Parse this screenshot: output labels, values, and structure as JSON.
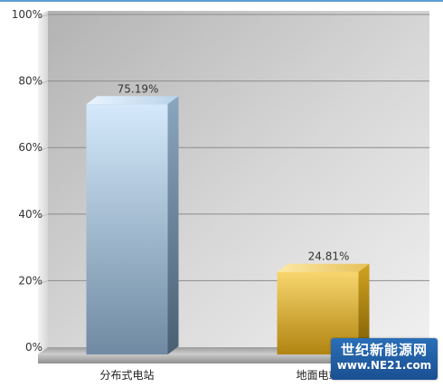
{
  "chart_data": {
    "type": "bar",
    "categories": [
      "分布式电站",
      "地面电站"
    ],
    "values": [
      75.19,
      24.81
    ],
    "data_labels": [
      "75.19%",
      "24.81%"
    ],
    "series_colors": [
      "#8fb1d2",
      "#e0b43a"
    ],
    "ylim": [
      0,
      100
    ],
    "yticks": [
      {
        "value": 0,
        "label": "0%"
      },
      {
        "value": 20,
        "label": "20%"
      },
      {
        "value": 40,
        "label": "40%"
      },
      {
        "value": 60,
        "label": "60%"
      },
      {
        "value": 80,
        "label": "80%"
      },
      {
        "value": 100,
        "label": "100%"
      }
    ],
    "grid": true,
    "title": "",
    "xlabel": "",
    "ylabel": ""
  },
  "watermark": {
    "line1": "世纪新能源网",
    "line2": "www.NE21.com"
  }
}
